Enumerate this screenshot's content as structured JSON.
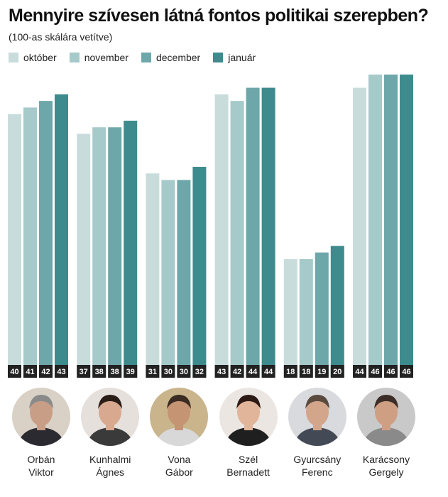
{
  "title": "Mennyire szívesen látná fontos politikai szerepben?",
  "subtitle": "(100-as skálára vetítve)",
  "colors": {
    "október": "#c9dcdc",
    "november": "#a6c9ca",
    "december": "#6ea7a9",
    "január": "#3e8b8e",
    "value_box": "#222222",
    "value_text": "#ffffff"
  },
  "chart_data": {
    "type": "bar",
    "title": "Mennyire szívesen látná fontos politikai szerepben?",
    "subtitle": "(100-as skálára vetítve)",
    "categories": [
      "Orbán Viktor",
      "Kunhalmi Ágnes",
      "Vona Gábor",
      "Szél Bernadett",
      "Gyurcsány Ferenc",
      "Karácsony Gergely"
    ],
    "series": [
      {
        "name": "október",
        "values": [
          40,
          37,
          31,
          43,
          18,
          44
        ]
      },
      {
        "name": "november",
        "values": [
          41,
          38,
          30,
          42,
          18,
          46
        ]
      },
      {
        "name": "december",
        "values": [
          42,
          38,
          30,
          44,
          19,
          46
        ]
      },
      {
        "name": "január",
        "values": [
          43,
          39,
          32,
          44,
          20,
          46
        ]
      }
    ],
    "ylim": [
      0,
      46
    ],
    "legend": "top-left",
    "grid": false,
    "data_labels": "bottom"
  },
  "people": [
    {
      "first": "Orbán",
      "last": "Viktor",
      "icon": "portrait-orban-viktor"
    },
    {
      "first": "Kunhalmi",
      "last": "Ágnes",
      "icon": "portrait-kunhalmi-agnes"
    },
    {
      "first": "Vona",
      "last": "Gábor",
      "icon": "portrait-vona-gabor"
    },
    {
      "first": "Szél",
      "last": "Bernadett",
      "icon": "portrait-szel-bernadett"
    },
    {
      "first": "Gyurcsány",
      "last": "Ferenc",
      "icon": "portrait-gyurcsany-ferenc"
    },
    {
      "first": "Karácsony",
      "last": "Gergely",
      "icon": "portrait-karacsony-gergely"
    }
  ]
}
